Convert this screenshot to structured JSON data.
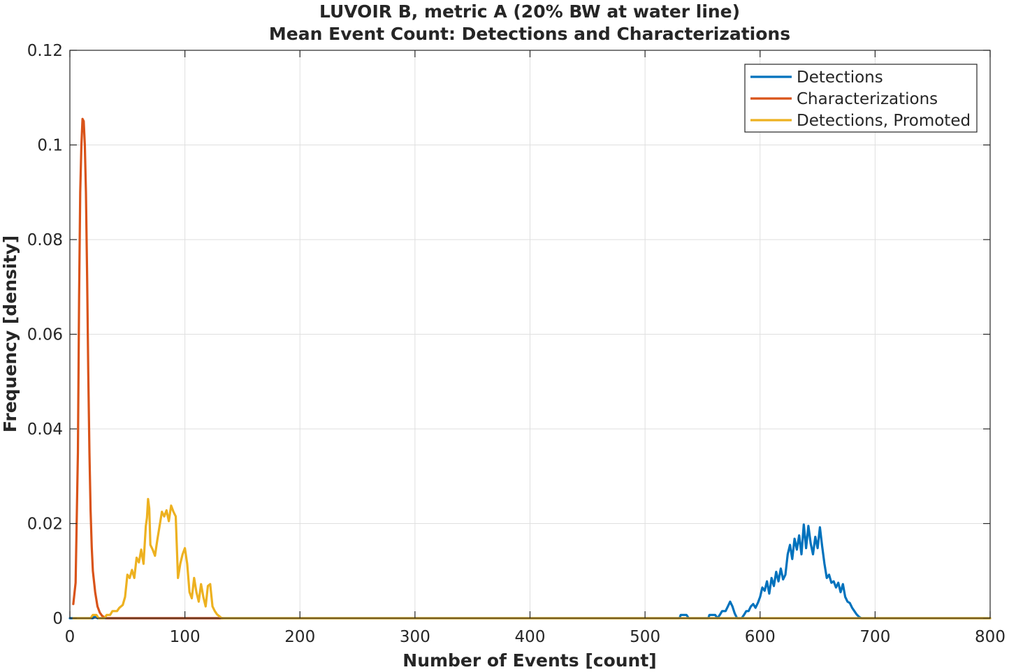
{
  "chart_data": {
    "type": "line",
    "title": [
      "LUVOIR B, metric A (20% BW at water line)",
      "Mean Event Count: Detections and Characterizations"
    ],
    "xlabel": "Number of Events [count]",
    "ylabel": "Frequency [density]",
    "xlim": [
      0,
      800
    ],
    "ylim": [
      0,
      0.12
    ],
    "xticks": [
      0,
      100,
      200,
      300,
      400,
      500,
      600,
      700,
      800
    ],
    "xtick_labels": [
      "0",
      "100",
      "200",
      "300",
      "400",
      "500",
      "600",
      "700",
      "800"
    ],
    "yticks": [
      0,
      0.02,
      0.04,
      0.06,
      0.08,
      0.1,
      0.12
    ],
    "ytick_labels": [
      "0",
      "0.02",
      "0.04",
      "0.06",
      "0.08",
      "0.1",
      "0.12"
    ],
    "grid": true,
    "legend_position": "top-right",
    "series": [
      {
        "name": "Detections",
        "color": "#0072BD",
        "points": [
          [
            0,
            0
          ],
          [
            20,
            0
          ],
          [
            22,
            0.0005
          ],
          [
            24,
            0
          ],
          [
            530,
            0
          ],
          [
            531,
            0.0007
          ],
          [
            536,
            0.0007
          ],
          [
            538,
            0
          ],
          [
            555,
            0
          ],
          [
            556,
            0.0007
          ],
          [
            561,
            0.0007
          ],
          [
            563,
            0
          ],
          [
            565,
            0.0007
          ],
          [
            567,
            0.0015
          ],
          [
            570,
            0.0015
          ],
          [
            572,
            0.0025
          ],
          [
            574,
            0.0035
          ],
          [
            576,
            0.0025
          ],
          [
            578,
            0.001
          ],
          [
            580,
            0
          ],
          [
            584,
            0
          ],
          [
            586,
            0.0007
          ],
          [
            588,
            0.0015
          ],
          [
            590,
            0.0015
          ],
          [
            592,
            0.0025
          ],
          [
            594,
            0.003
          ],
          [
            596,
            0.0022
          ],
          [
            598,
            0.0032
          ],
          [
            600,
            0.0045
          ],
          [
            602,
            0.0065
          ],
          [
            604,
            0.0058
          ],
          [
            606,
            0.0078
          ],
          [
            608,
            0.0052
          ],
          [
            610,
            0.0085
          ],
          [
            612,
            0.0068
          ],
          [
            614,
            0.0098
          ],
          [
            616,
            0.0078
          ],
          [
            618,
            0.0105
          ],
          [
            620,
            0.0082
          ],
          [
            622,
            0.0092
          ],
          [
            624,
            0.0135
          ],
          [
            626,
            0.0155
          ],
          [
            628,
            0.0125
          ],
          [
            630,
            0.0168
          ],
          [
            632,
            0.0145
          ],
          [
            634,
            0.0175
          ],
          [
            636,
            0.0135
          ],
          [
            638,
            0.0198
          ],
          [
            640,
            0.0148
          ],
          [
            642,
            0.0195
          ],
          [
            644,
            0.0158
          ],
          [
            646,
            0.0135
          ],
          [
            648,
            0.0172
          ],
          [
            650,
            0.0148
          ],
          [
            652,
            0.0192
          ],
          [
            654,
            0.0152
          ],
          [
            656,
            0.0115
          ],
          [
            658,
            0.0085
          ],
          [
            660,
            0.0092
          ],
          [
            662,
            0.0075
          ],
          [
            664,
            0.0078
          ],
          [
            666,
            0.0065
          ],
          [
            668,
            0.0075
          ],
          [
            670,
            0.0055
          ],
          [
            672,
            0.0072
          ],
          [
            674,
            0.0045
          ],
          [
            676,
            0.0035
          ],
          [
            678,
            0.0032
          ],
          [
            680,
            0.0022
          ],
          [
            682,
            0.0015
          ],
          [
            684,
            0.0008
          ],
          [
            686,
            0.0003
          ],
          [
            688,
            0
          ],
          [
            800,
            0
          ]
        ]
      },
      {
        "name": "Characterizations",
        "color": "#D95319",
        "points": [
          [
            3,
            0.003
          ],
          [
            5,
            0.0075
          ],
          [
            7,
            0.035
          ],
          [
            8,
            0.068
          ],
          [
            9,
            0.09
          ],
          [
            10,
            0.1
          ],
          [
            11,
            0.1055
          ],
          [
            12,
            0.105
          ],
          [
            13,
            0.1
          ],
          [
            14,
            0.09
          ],
          [
            15,
            0.072
          ],
          [
            16,
            0.052
          ],
          [
            17,
            0.035
          ],
          [
            18,
            0.023
          ],
          [
            19,
            0.015
          ],
          [
            20,
            0.01
          ],
          [
            22,
            0.0055
          ],
          [
            24,
            0.0025
          ],
          [
            26,
            0.0012
          ],
          [
            28,
            0.0005
          ],
          [
            30,
            0.0002
          ],
          [
            32,
            0
          ],
          [
            133,
            0
          ]
        ]
      },
      {
        "name": "Detections, Promoted",
        "color": "#EDB120",
        "points": [
          [
            3,
            0
          ],
          [
            18,
            0
          ],
          [
            20,
            0.0007
          ],
          [
            23,
            0.0007
          ],
          [
            25,
            0
          ],
          [
            30,
            0
          ],
          [
            32,
            0.0007
          ],
          [
            35,
            0.0007
          ],
          [
            37,
            0.0015
          ],
          [
            41,
            0.0015
          ],
          [
            43,
            0.0022
          ],
          [
            46,
            0.0028
          ],
          [
            48,
            0.0045
          ],
          [
            50,
            0.0092
          ],
          [
            52,
            0.0085
          ],
          [
            54,
            0.0102
          ],
          [
            56,
            0.0085
          ],
          [
            58,
            0.0128
          ],
          [
            60,
            0.0118
          ],
          [
            62,
            0.0145
          ],
          [
            64,
            0.0115
          ],
          [
            66,
            0.0195
          ],
          [
            67,
            0.0212
          ],
          [
            68,
            0.0252
          ],
          [
            69,
            0.0232
          ],
          [
            70,
            0.0155
          ],
          [
            72,
            0.0145
          ],
          [
            74,
            0.0132
          ],
          [
            76,
            0.0165
          ],
          [
            78,
            0.0195
          ],
          [
            80,
            0.0225
          ],
          [
            82,
            0.0215
          ],
          [
            84,
            0.0228
          ],
          [
            86,
            0.0205
          ],
          [
            88,
            0.0238
          ],
          [
            90,
            0.0225
          ],
          [
            92,
            0.0215
          ],
          [
            94,
            0.0085
          ],
          [
            96,
            0.0115
          ],
          [
            98,
            0.0135
          ],
          [
            100,
            0.0148
          ],
          [
            102,
            0.0115
          ],
          [
            104,
            0.0055
          ],
          [
            106,
            0.0042
          ],
          [
            108,
            0.0085
          ],
          [
            110,
            0.0055
          ],
          [
            112,
            0.0035
          ],
          [
            114,
            0.0072
          ],
          [
            116,
            0.0045
          ],
          [
            118,
            0.0025
          ],
          [
            120,
            0.0068
          ],
          [
            122,
            0.0072
          ],
          [
            124,
            0.0025
          ],
          [
            126,
            0.0015
          ],
          [
            128,
            0.0008
          ],
          [
            130,
            0.0004
          ],
          [
            132,
            0
          ],
          [
            800,
            0
          ]
        ]
      }
    ]
  }
}
